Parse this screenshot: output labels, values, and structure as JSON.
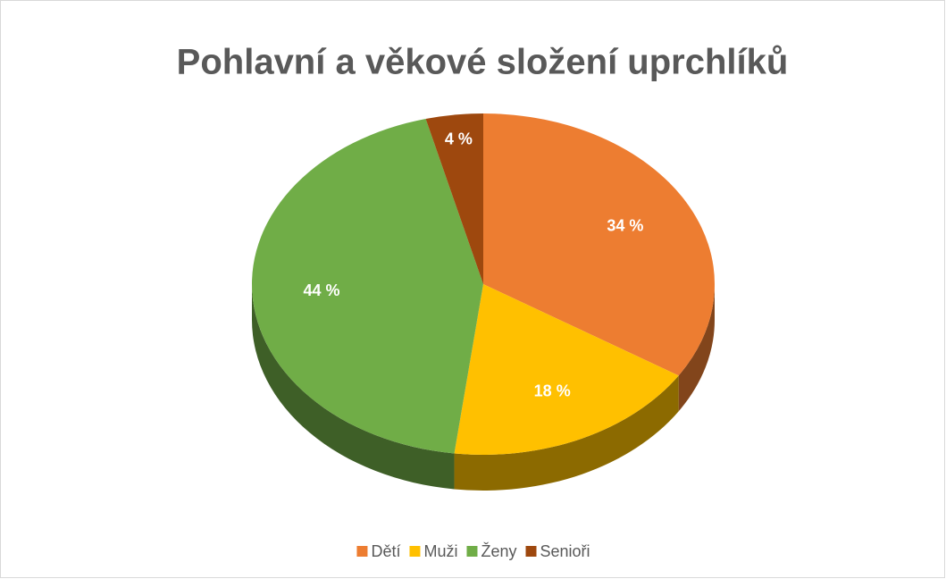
{
  "chart_data": {
    "type": "pie",
    "title": "Pohlavní a věkové složení uprchlíků",
    "categories": [
      "Dětí",
      "Muži",
      "Ženy",
      "Senioři"
    ],
    "values": [
      34,
      18,
      44,
      4
    ],
    "value_labels": [
      "34 %",
      "18 %",
      "44 %",
      "4 %"
    ],
    "colors": [
      "#ed7d31",
      "#ffc000",
      "#70ad47",
      "#9e480e"
    ],
    "legend": "bottom"
  }
}
